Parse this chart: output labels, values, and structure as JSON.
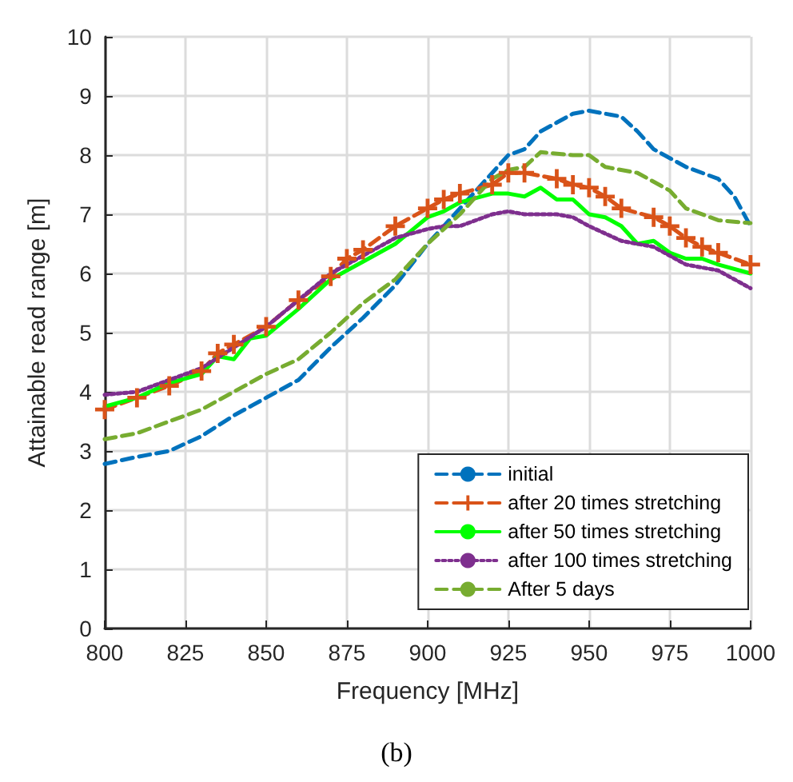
{
  "chart_data": {
    "type": "line",
    "xlabel": "Frequency [MHz]",
    "ylabel": "Attainable read range [m]",
    "annotations": [
      "(b)"
    ],
    "xlim": [
      800,
      1000
    ],
    "xticks": [
      800,
      825,
      850,
      875,
      900,
      925,
      950,
      975,
      1000
    ],
    "ylim": [
      0,
      10
    ],
    "yticks": [
      0,
      1,
      2,
      3,
      4,
      5,
      6,
      7,
      8,
      9,
      10
    ],
    "grid": true,
    "legend": "bottom right",
    "series": [
      {
        "name": "initial",
        "color": "#0072bd",
        "line_style": "dashed",
        "marker": "none",
        "x": [
          800,
          810,
          820,
          830,
          840,
          850,
          860,
          870,
          880,
          890,
          900,
          910,
          920,
          925,
          930,
          935,
          940,
          945,
          950,
          955,
          960,
          965,
          970,
          975,
          980,
          990,
          995,
          1000
        ],
        "values": [
          2.78,
          2.9,
          3.0,
          3.25,
          3.6,
          3.9,
          4.2,
          4.75,
          5.25,
          5.8,
          6.5,
          7.1,
          7.7,
          8.0,
          8.1,
          8.4,
          8.55,
          8.7,
          8.75,
          8.7,
          8.65,
          8.4,
          8.1,
          7.95,
          7.8,
          7.6,
          7.3,
          6.8
        ]
      },
      {
        "name": "after 20 times stretching",
        "color": "#d95319",
        "line_style": "dashed",
        "marker": "cross",
        "x": [
          800,
          810,
          820,
          830,
          835,
          840,
          850,
          860,
          870,
          875,
          880,
          890,
          900,
          905,
          910,
          920,
          925,
          930,
          940,
          945,
          950,
          955,
          960,
          970,
          975,
          980,
          985,
          990,
          1000
        ],
        "values": [
          3.7,
          3.9,
          4.1,
          4.35,
          4.65,
          4.8,
          5.1,
          5.55,
          5.95,
          6.25,
          6.4,
          6.8,
          7.1,
          7.25,
          7.35,
          7.5,
          7.7,
          7.7,
          7.6,
          7.5,
          7.45,
          7.3,
          7.1,
          6.95,
          6.8,
          6.6,
          6.45,
          6.35,
          6.15
        ]
      },
      {
        "name": "after 50 times stretching",
        "color": "#00ff00",
        "line_style": "solid",
        "marker": "none",
        "x": [
          800,
          810,
          820,
          830,
          835,
          840,
          845,
          850,
          860,
          870,
          880,
          890,
          900,
          905,
          910,
          920,
          925,
          930,
          935,
          940,
          945,
          950,
          955,
          960,
          965,
          970,
          975,
          980,
          985,
          990,
          1000
        ],
        "values": [
          3.75,
          3.9,
          4.15,
          4.3,
          4.6,
          4.55,
          4.9,
          4.95,
          5.4,
          5.9,
          6.2,
          6.5,
          6.95,
          7.05,
          7.2,
          7.35,
          7.35,
          7.3,
          7.45,
          7.25,
          7.25,
          7.0,
          6.95,
          6.8,
          6.5,
          6.55,
          6.35,
          6.25,
          6.25,
          6.15,
          6.0
        ]
      },
      {
        "name": "after 100 times stretching",
        "color": "#7e2f8e",
        "line_style": "dotted",
        "marker": "none",
        "x": [
          800,
          810,
          820,
          830,
          840,
          850,
          860,
          870,
          880,
          890,
          900,
          905,
          910,
          920,
          925,
          930,
          940,
          945,
          950,
          960,
          970,
          975,
          980,
          990,
          1000
        ],
        "values": [
          3.95,
          4.0,
          4.2,
          4.4,
          4.75,
          5.1,
          5.55,
          6.0,
          6.3,
          6.6,
          6.75,
          6.8,
          6.8,
          7.0,
          7.05,
          7.0,
          7.0,
          6.95,
          6.8,
          6.55,
          6.45,
          6.3,
          6.15,
          6.05,
          5.75
        ]
      },
      {
        "name": "After 5 days",
        "color": "#77ac30",
        "line_style": "dashed",
        "marker": "none",
        "x": [
          800,
          810,
          820,
          830,
          840,
          850,
          860,
          870,
          880,
          890,
          900,
          910,
          920,
          925,
          930,
          935,
          945,
          950,
          955,
          965,
          970,
          975,
          980,
          990,
          1000
        ],
        "values": [
          3.2,
          3.3,
          3.5,
          3.7,
          4.0,
          4.3,
          4.55,
          5.0,
          5.5,
          5.9,
          6.5,
          7.0,
          7.6,
          7.75,
          7.8,
          8.05,
          8.0,
          8.0,
          7.8,
          7.7,
          7.55,
          7.4,
          7.1,
          6.9,
          6.85
        ]
      }
    ]
  }
}
